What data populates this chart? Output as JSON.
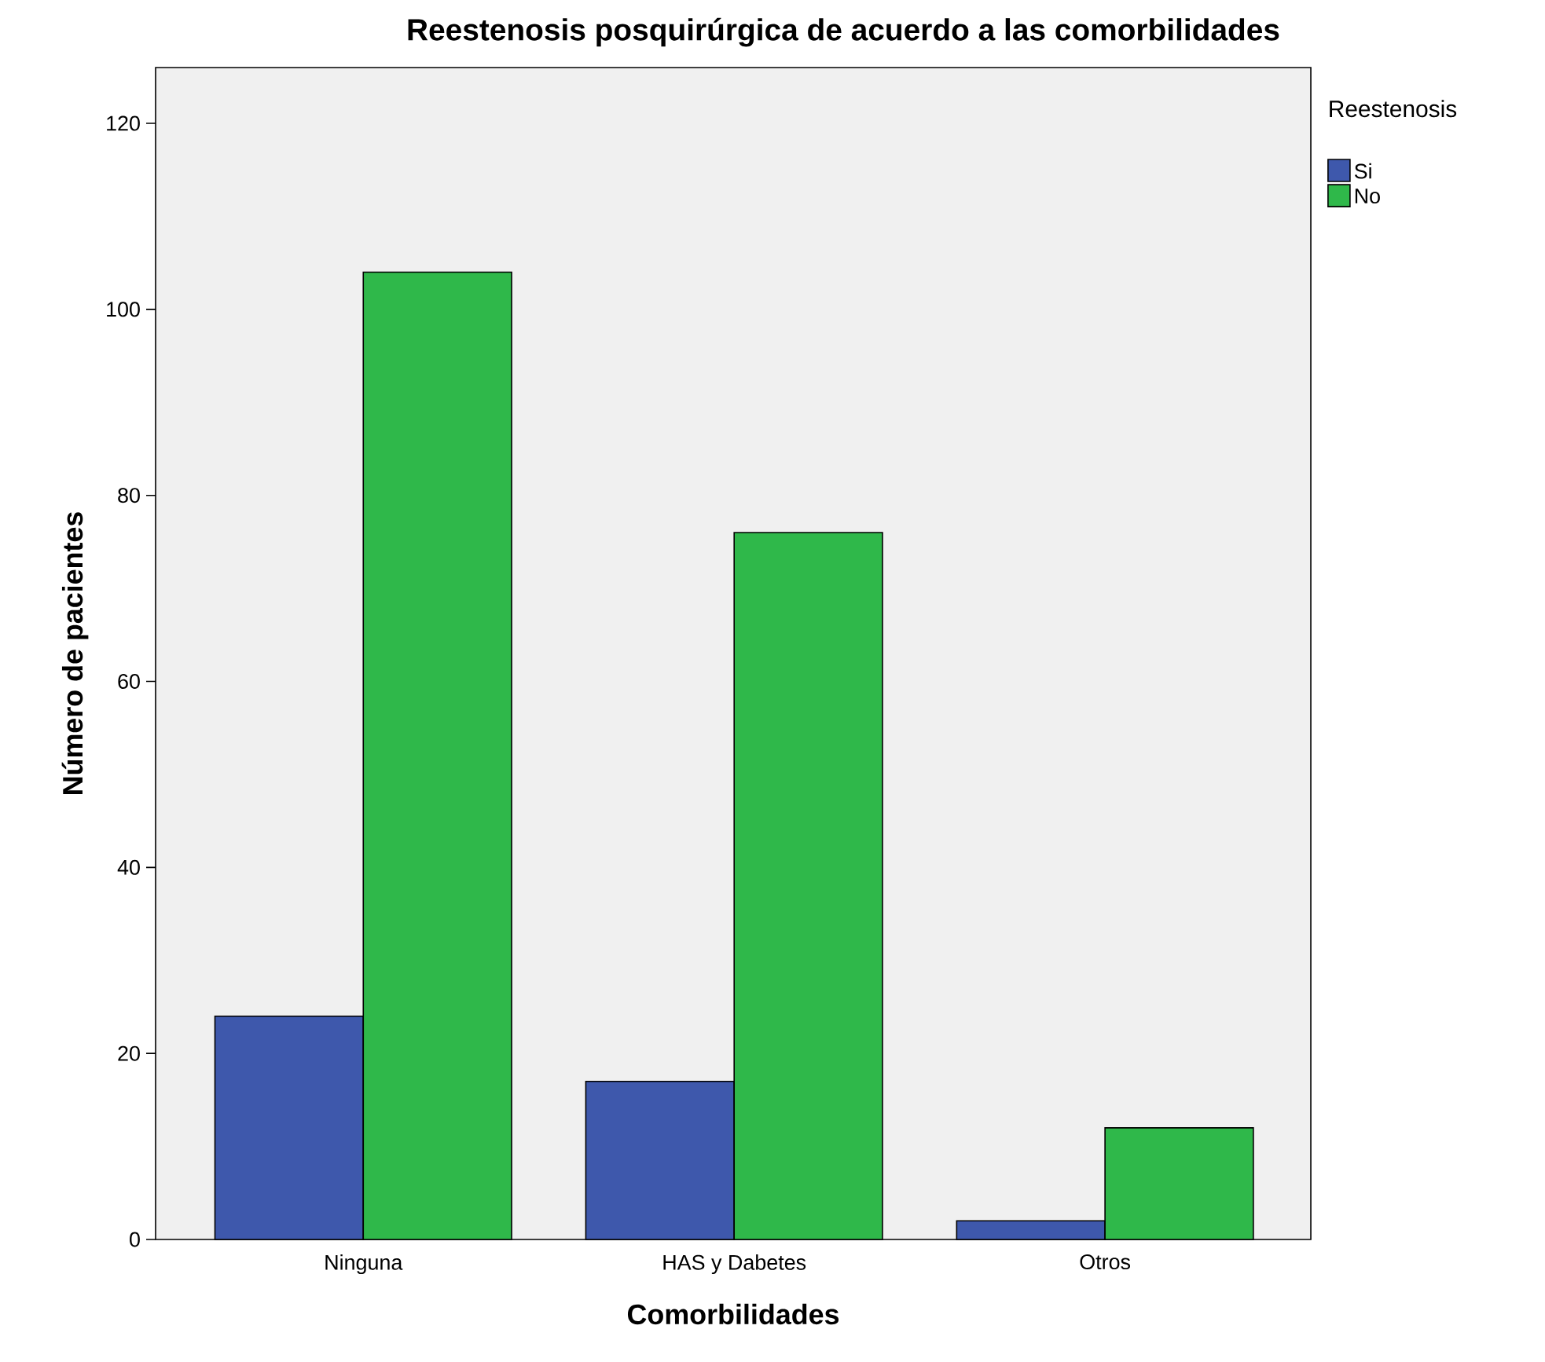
{
  "chart_data": {
    "type": "bar",
    "title": "Reestenosis posquirúrgica de acuerdo a las comorbilidades",
    "xlabel": "Comorbilidades",
    "ylabel": "Número de pacientes",
    "legend_title": "Reestenosis",
    "categories": [
      "Ninguna",
      "HAS y Dabetes",
      "Otros"
    ],
    "series": [
      {
        "name": "Si",
        "color": "#3e58ac",
        "values": [
          24,
          17,
          2
        ]
      },
      {
        "name": "No",
        "color": "#2fb84a",
        "values": [
          104,
          76,
          12
        ]
      }
    ],
    "ylim": [
      0,
      126
    ],
    "yticks": [
      0,
      20,
      40,
      60,
      80,
      100,
      120
    ],
    "legend": "right"
  }
}
